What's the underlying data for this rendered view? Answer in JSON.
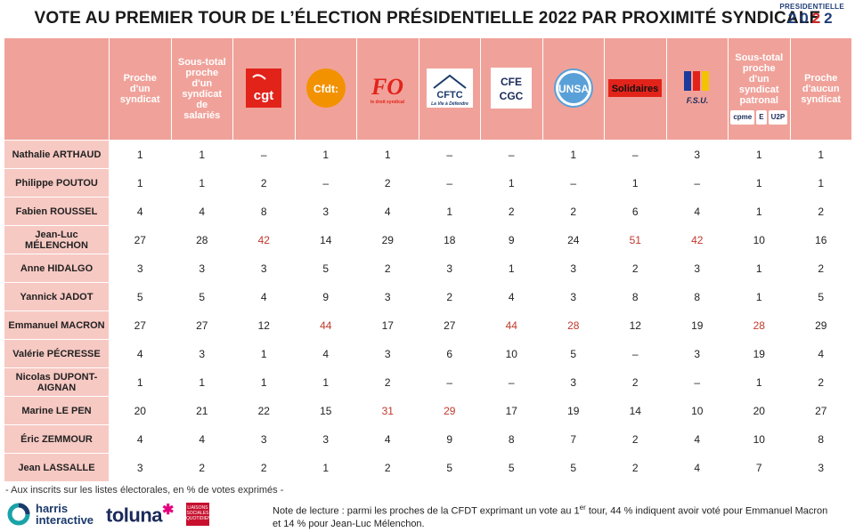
{
  "header": {
    "title": "VOTE AU PREMIER TOUR DE L’ÉLECTION PRÉSIDENTIELLE 2022 PAR PROXIMITÉ SYNDICALE",
    "logo_small": "PRESIDENTIELLE",
    "logo_year_a": "20",
    "logo_year_b": "2",
    "logo_year_c": "2"
  },
  "columns": [
    {
      "label": "Proche d'un syndicat",
      "kind": "text"
    },
    {
      "label": "Sous-total proche d'un syndicat de salariés",
      "kind": "text"
    },
    {
      "label": "cgt",
      "kind": "logo",
      "icon": "cgt-logo-icon"
    },
    {
      "label": "Cfdt:",
      "kind": "logo",
      "icon": "cfdt-logo-icon"
    },
    {
      "label": "FO",
      "sub": "le droit syndical",
      "kind": "logo",
      "icon": "fo-logo-icon"
    },
    {
      "label": "CFTC",
      "sub": "La Vie à Défendre",
      "kind": "logo",
      "icon": "cftc-logo-icon"
    },
    {
      "label": "CFE CGC",
      "kind": "logo",
      "icon": "cfe-cgc-logo-icon"
    },
    {
      "label": "UNSA",
      "kind": "logo",
      "icon": "unsa-logo-icon"
    },
    {
      "label": "Solidaires",
      "kind": "logo",
      "icon": "solidaires-logo-icon"
    },
    {
      "label": "F.S.U.",
      "kind": "logo",
      "icon": "fsu-logo-icon"
    },
    {
      "label": "Sous-total proche d'un syndicat patronal",
      "kind": "text",
      "extra": [
        "cpme",
        "E",
        "U2P"
      ]
    },
    {
      "label": "Proche d'aucun syndicat",
      "kind": "text"
    }
  ],
  "chart_data": {
    "type": "table",
    "title": "VOTE AU PREMIER TOUR DE L’ÉLECTION PRÉSIDENTIELLE 2022 PAR PROXIMITÉ SYNDICALE",
    "highlight_color": "#c0392b",
    "rows": [
      {
        "name": "Nathalie ARTHAUD",
        "values": [
          "1",
          "1",
          "–",
          "1",
          "1",
          "–",
          "–",
          "1",
          "–",
          "3",
          "1",
          "1"
        ],
        "hl": []
      },
      {
        "name": "Philippe POUTOU",
        "values": [
          "1",
          "1",
          "2",
          "–",
          "2",
          "–",
          "1",
          "–",
          "1",
          "–",
          "1",
          "1"
        ],
        "hl": []
      },
      {
        "name": "Fabien ROUSSEL",
        "values": [
          "4",
          "4",
          "8",
          "3",
          "4",
          "1",
          "2",
          "2",
          "6",
          "4",
          "1",
          "2"
        ],
        "hl": []
      },
      {
        "name": "Jean-Luc MÉLENCHON",
        "values": [
          "27",
          "28",
          "42",
          "14",
          "29",
          "18",
          "9",
          "24",
          "51",
          "42",
          "10",
          "16"
        ],
        "hl": [
          2,
          8,
          9
        ]
      },
      {
        "name": "Anne HIDALGO",
        "values": [
          "3",
          "3",
          "3",
          "5",
          "2",
          "3",
          "1",
          "3",
          "2",
          "3",
          "1",
          "2"
        ],
        "hl": []
      },
      {
        "name": "Yannick JADOT",
        "values": [
          "5",
          "5",
          "4",
          "9",
          "3",
          "2",
          "4",
          "3",
          "8",
          "8",
          "1",
          "5"
        ],
        "hl": []
      },
      {
        "name": "Emmanuel MACRON",
        "values": [
          "27",
          "27",
          "12",
          "44",
          "17",
          "27",
          "44",
          "28",
          "12",
          "19",
          "28",
          "29"
        ],
        "hl": [
          3,
          6,
          7,
          10
        ]
      },
      {
        "name": "Valérie PÉCRESSE",
        "values": [
          "4",
          "3",
          "1",
          "4",
          "3",
          "6",
          "10",
          "5",
          "–",
          "3",
          "19",
          "4"
        ],
        "hl": []
      },
      {
        "name": "Nicolas DUPONT-AIGNAN",
        "values": [
          "1",
          "1",
          "1",
          "1",
          "2",
          "–",
          "–",
          "3",
          "2",
          "–",
          "1",
          "2"
        ],
        "hl": []
      },
      {
        "name": "Marine LE PEN",
        "values": [
          "20",
          "21",
          "22",
          "15",
          "31",
          "29",
          "17",
          "19",
          "14",
          "10",
          "20",
          "27"
        ],
        "hl": [
          4,
          5
        ]
      },
      {
        "name": "Éric ZEMMOUR",
        "values": [
          "4",
          "4",
          "3",
          "3",
          "4",
          "9",
          "8",
          "7",
          "2",
          "4",
          "10",
          "8"
        ],
        "hl": []
      },
      {
        "name": "Jean LASSALLE",
        "values": [
          "3",
          "2",
          "2",
          "1",
          "2",
          "5",
          "5",
          "5",
          "2",
          "4",
          "7",
          "3"
        ],
        "hl": []
      }
    ]
  },
  "footer": {
    "note": "- Aux inscrits sur les listes électorales, en % de votes exprimés -",
    "harris_line1": "harris",
    "harris_line2": "interactive",
    "toluna": "toluna",
    "liaisons": "LIAISONS SOCIALES QUOTIDIEN",
    "reading_a": "Note de lecture : parmi les proches de la CFDT exprimant un vote au 1",
    "reading_sup": "er",
    "reading_b": " tour, 44 % indiquent avoir voté pour Emmanuel Macron",
    "reading_c": "et 14 % pour Jean-Luc Mélenchon."
  }
}
